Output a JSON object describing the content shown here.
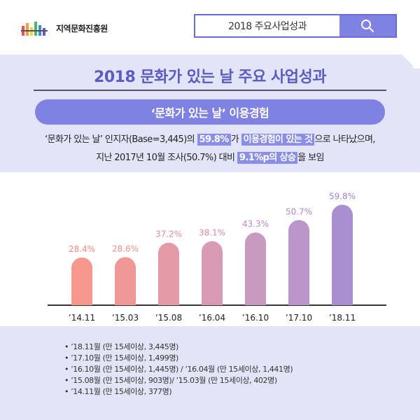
{
  "header": {
    "logo_text": "지역문화진흥원",
    "search_label": "2018 주요사업성과",
    "search_icon": "search-icon"
  },
  "main_title": "2018 문화가 있는 날 주요 사업성과",
  "pill_title": "‘문화가 있는 날’ 이용경험",
  "description": {
    "line1_a": "‘문화가 있는 날’ 인지자(Base=3,445)의 ",
    "line1_hl1": "59.8%",
    "line1_b": "가 ",
    "line1_hl2": "이용경험이 있는 것",
    "line1_c": "으로 나타났으며,",
    "line2_a": "지난 2017년 10월 조사(50.7%) 대비 ",
    "line2_hl": "9.1%p의 상승",
    "line2_b": "을 보임"
  },
  "colors": {
    "accent": "#7f82e0",
    "title": "#5a5cc0",
    "band": "#e4e4f8",
    "bar_start": "#f7988f",
    "bar_end": "#a98fd0"
  },
  "chart_data": {
    "type": "bar",
    "categories": [
      "’14.11",
      "’15.03",
      "’15.08",
      "’16.04",
      "’16.10",
      "’17.10",
      "’18.11"
    ],
    "values": [
      28.4,
      28.6,
      37.2,
      38.1,
      43.3,
      50.7,
      59.8
    ],
    "value_labels": [
      "28.4%",
      "28.6%",
      "37.2%",
      "38.1%",
      "43.3%",
      "50.7%",
      "59.8%"
    ],
    "ylim": [
      0,
      60
    ],
    "bar_colors": [
      "#f7988f",
      "#ef9797",
      "#e49aa6",
      "#d89ab4",
      "#c99abf",
      "#bb97c9",
      "#a98fd0"
    ],
    "label_colors": [
      "#f48a80",
      "#ee8e8e",
      "#e08c9e",
      "#d08aaa",
      "#c08cb8",
      "#b088c0",
      "#9d84cc"
    ],
    "grid": false
  },
  "notes": [
    "’18.11월 (만 15세이상, 3,445명)",
    "’17.10월 (만 15세이상, 1,499명)",
    "’16.10월 (만 15세이상, 1,445명) / ’16.04월 (만 15세이상, 1,441명)",
    "’15.08월 (만 15세이상, 903명)/ ’15.03월 (만 15세이상, 402명)",
    "’14.11월 (만 15세이상, 377명)"
  ]
}
